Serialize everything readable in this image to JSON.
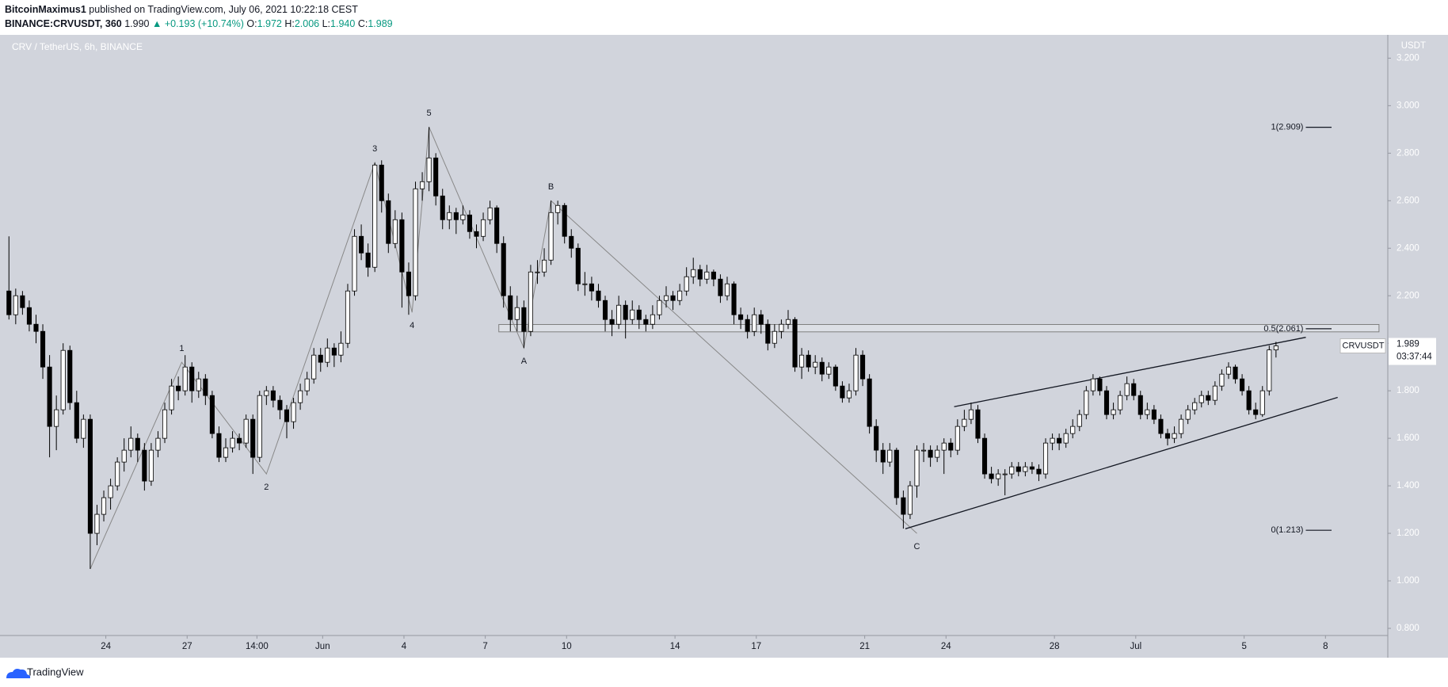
{
  "header": {
    "author": "BitcoinMaximus1",
    "published": "published on TradingView.com, July 06, 2021 10:22:18 CEST",
    "symbol": "BINANCE:CRVUSDT, 360",
    "last": "1.990",
    "change": "▲ +0.193 (+10.74%)",
    "ohlc": [
      {
        "label": "O:",
        "value": "1.972"
      },
      {
        "label": "H:",
        "value": "2.006"
      },
      {
        "label": "L:",
        "value": "1.940"
      },
      {
        "label": "C:",
        "value": "1.989"
      }
    ]
  },
  "footer": {
    "brand": "TradingView"
  },
  "chart_data": {
    "type": "candlestick",
    "title": "CRV / TetherUS, 6h, BINANCE",
    "currency": "USDT",
    "background": "#d1d4dc",
    "up_color": "#ffffff",
    "down_color": "#000000",
    "grid": false,
    "xlim": [
      -0.5,
      203.5
    ],
    "ylim": [
      0.77,
      3.298
    ],
    "yticks": [
      {
        "value": 0.8,
        "label": "0.800"
      },
      {
        "value": 1.0,
        "label": "1.000"
      },
      {
        "value": 1.2,
        "label": "1.200"
      },
      {
        "value": 1.4,
        "label": "1.400"
      },
      {
        "value": 1.6,
        "label": "1.600"
      },
      {
        "value": 1.8,
        "label": "1.800"
      },
      {
        "value": 2.0,
        "label": "2.000"
      },
      {
        "value": 2.2,
        "label": "2.200"
      },
      {
        "value": 2.4,
        "label": "2.400"
      },
      {
        "value": 2.6,
        "label": "2.600"
      },
      {
        "value": 2.8,
        "label": "2.800"
      },
      {
        "value": 3.0,
        "label": "3.000"
      },
      {
        "value": 3.2,
        "label": "3.200"
      }
    ],
    "xticks": [
      {
        "value": 14.3,
        "label": "24"
      },
      {
        "value": 26.3,
        "label": "27"
      },
      {
        "value": 36.6,
        "label": "14:00"
      },
      {
        "value": 46.3,
        "label": "Jun"
      },
      {
        "value": 58.3,
        "label": "4"
      },
      {
        "value": 70.3,
        "label": "7"
      },
      {
        "value": 82.3,
        "label": "10"
      },
      {
        "value": 98.3,
        "label": "14"
      },
      {
        "value": 110.3,
        "label": "17"
      },
      {
        "value": 126.3,
        "label": "21"
      },
      {
        "value": 138.3,
        "label": "24"
      },
      {
        "value": 154.3,
        "label": "28"
      },
      {
        "value": 166.3,
        "label": "Jul"
      },
      {
        "value": 182.3,
        "label": "5"
      },
      {
        "value": 194.3,
        "label": "8"
      }
    ],
    "ohlc": [
      [
        2.22,
        2.45,
        2.1,
        2.12
      ],
      [
        2.12,
        2.23,
        2.08,
        2.2
      ],
      [
        2.2,
        2.22,
        2.12,
        2.15
      ],
      [
        2.15,
        2.18,
        2.05,
        2.08
      ],
      [
        2.08,
        2.12,
        2.0,
        2.05
      ],
      [
        2.05,
        2.08,
        1.85,
        1.9
      ],
      [
        1.9,
        1.95,
        1.52,
        1.65
      ],
      [
        1.65,
        1.78,
        1.55,
        1.72
      ],
      [
        1.72,
        2.0,
        1.7,
        1.97
      ],
      [
        1.97,
        1.99,
        1.72,
        1.75
      ],
      [
        1.75,
        1.8,
        1.58,
        1.6
      ],
      [
        1.6,
        1.7,
        1.56,
        1.68
      ],
      [
        1.68,
        1.7,
        1.05,
        1.2
      ],
      [
        1.2,
        1.32,
        1.15,
        1.28
      ],
      [
        1.28,
        1.38,
        1.25,
        1.35
      ],
      [
        1.35,
        1.43,
        1.3,
        1.4
      ],
      [
        1.4,
        1.52,
        1.38,
        1.5
      ],
      [
        1.5,
        1.6,
        1.46,
        1.55
      ],
      [
        1.55,
        1.65,
        1.52,
        1.6
      ],
      [
        1.6,
        1.62,
        1.5,
        1.55
      ],
      [
        1.55,
        1.58,
        1.38,
        1.42
      ],
      [
        1.42,
        1.58,
        1.4,
        1.55
      ],
      [
        1.55,
        1.63,
        1.52,
        1.6
      ],
      [
        1.6,
        1.75,
        1.58,
        1.72
      ],
      [
        1.72,
        1.85,
        1.7,
        1.82
      ],
      [
        1.82,
        1.86,
        1.76,
        1.8
      ],
      [
        1.8,
        1.95,
        1.78,
        1.9
      ],
      [
        1.9,
        1.92,
        1.75,
        1.8
      ],
      [
        1.8,
        1.88,
        1.77,
        1.85
      ],
      [
        1.85,
        1.87,
        1.74,
        1.78
      ],
      [
        1.78,
        1.8,
        1.6,
        1.62
      ],
      [
        1.62,
        1.65,
        1.5,
        1.52
      ],
      [
        1.52,
        1.6,
        1.5,
        1.56
      ],
      [
        1.56,
        1.63,
        1.54,
        1.6
      ],
      [
        1.6,
        1.62,
        1.55,
        1.58
      ],
      [
        1.58,
        1.7,
        1.56,
        1.68
      ],
      [
        1.68,
        1.7,
        1.45,
        1.52
      ],
      [
        1.52,
        1.8,
        1.5,
        1.78
      ],
      [
        1.78,
        1.82,
        1.74,
        1.8
      ],
      [
        1.8,
        1.82,
        1.73,
        1.76
      ],
      [
        1.76,
        1.78,
        1.68,
        1.72
      ],
      [
        1.72,
        1.74,
        1.6,
        1.67
      ],
      [
        1.67,
        1.77,
        1.64,
        1.75
      ],
      [
        1.75,
        1.83,
        1.72,
        1.8
      ],
      [
        1.8,
        1.88,
        1.78,
        1.85
      ],
      [
        1.85,
        1.98,
        1.83,
        1.95
      ],
      [
        1.95,
        1.98,
        1.88,
        1.92
      ],
      [
        1.92,
        2.02,
        1.9,
        1.98
      ],
      [
        1.98,
        2.0,
        1.9,
        1.95
      ],
      [
        1.95,
        2.05,
        1.92,
        2.0
      ],
      [
        2.0,
        2.25,
        1.98,
        2.22
      ],
      [
        2.22,
        2.48,
        2.2,
        2.45
      ],
      [
        2.45,
        2.5,
        2.35,
        2.38
      ],
      [
        2.38,
        2.42,
        2.28,
        2.32
      ],
      [
        2.32,
        2.76,
        2.3,
        2.75
      ],
      [
        2.75,
        2.77,
        2.55,
        2.6
      ],
      [
        2.6,
        2.63,
        2.38,
        2.42
      ],
      [
        2.42,
        2.56,
        2.4,
        2.52
      ],
      [
        2.52,
        2.55,
        2.15,
        2.3
      ],
      [
        2.3,
        2.34,
        2.12,
        2.2
      ],
      [
        2.2,
        2.68,
        2.18,
        2.65
      ],
      [
        2.65,
        2.72,
        2.6,
        2.68
      ],
      [
        2.68,
        2.91,
        2.64,
        2.78
      ],
      [
        2.78,
        2.8,
        2.58,
        2.62
      ],
      [
        2.62,
        2.65,
        2.48,
        2.52
      ],
      [
        2.52,
        2.58,
        2.48,
        2.55
      ],
      [
        2.55,
        2.57,
        2.46,
        2.52
      ],
      [
        2.52,
        2.58,
        2.5,
        2.54
      ],
      [
        2.54,
        2.56,
        2.44,
        2.47
      ],
      [
        2.47,
        2.5,
        2.4,
        2.45
      ],
      [
        2.45,
        2.55,
        2.43,
        2.52
      ],
      [
        2.52,
        2.6,
        2.5,
        2.57
      ],
      [
        2.57,
        2.58,
        2.38,
        2.42
      ],
      [
        2.42,
        2.45,
        2.15,
        2.2
      ],
      [
        2.2,
        2.24,
        2.05,
        2.1
      ],
      [
        2.1,
        2.2,
        2.05,
        2.15
      ],
      [
        2.15,
        2.18,
        1.98,
        2.05
      ],
      [
        2.05,
        2.33,
        2.03,
        2.3
      ],
      [
        2.3,
        2.35,
        2.25,
        2.3
      ],
      [
        2.3,
        2.4,
        2.28,
        2.35
      ],
      [
        2.35,
        2.6,
        2.33,
        2.55
      ],
      [
        2.55,
        2.6,
        2.5,
        2.58
      ],
      [
        2.58,
        2.59,
        2.42,
        2.45
      ],
      [
        2.45,
        2.48,
        2.36,
        2.4
      ],
      [
        2.4,
        2.42,
        2.22,
        2.25
      ],
      [
        2.25,
        2.3,
        2.2,
        2.25
      ],
      [
        2.25,
        2.28,
        2.18,
        2.22
      ],
      [
        2.22,
        2.25,
        2.15,
        2.18
      ],
      [
        2.18,
        2.2,
        2.05,
        2.1
      ],
      [
        2.1,
        2.14,
        2.03,
        2.08
      ],
      [
        2.08,
        2.2,
        2.06,
        2.16
      ],
      [
        2.16,
        2.18,
        2.02,
        2.1
      ],
      [
        2.1,
        2.18,
        2.08,
        2.14
      ],
      [
        2.14,
        2.16,
        2.06,
        2.1
      ],
      [
        2.1,
        2.12,
        2.05,
        2.08
      ],
      [
        2.08,
        2.16,
        2.06,
        2.12
      ],
      [
        2.12,
        2.2,
        2.1,
        2.18
      ],
      [
        2.18,
        2.24,
        2.15,
        2.2
      ],
      [
        2.2,
        2.22,
        2.14,
        2.18
      ],
      [
        2.18,
        2.25,
        2.16,
        2.22
      ],
      [
        2.22,
        2.32,
        2.2,
        2.28
      ],
      [
        2.28,
        2.36,
        2.25,
        2.31
      ],
      [
        2.31,
        2.33,
        2.24,
        2.27
      ],
      [
        2.27,
        2.33,
        2.25,
        2.3
      ],
      [
        2.3,
        2.31,
        2.24,
        2.27
      ],
      [
        2.27,
        2.29,
        2.17,
        2.2
      ],
      [
        2.2,
        2.28,
        2.18,
        2.25
      ],
      [
        2.25,
        2.26,
        2.08,
        2.12
      ],
      [
        2.12,
        2.15,
        2.06,
        2.1
      ],
      [
        2.1,
        2.12,
        2.02,
        2.05
      ],
      [
        2.05,
        2.15,
        2.03,
        2.12
      ],
      [
        2.12,
        2.14,
        2.04,
        2.08
      ],
      [
        2.08,
        2.1,
        1.97,
        2.0
      ],
      [
        2.0,
        2.08,
        1.98,
        2.05
      ],
      [
        2.05,
        2.1,
        2.02,
        2.08
      ],
      [
        2.08,
        2.14,
        2.06,
        2.1
      ],
      [
        2.1,
        2.11,
        1.88,
        1.9
      ],
      [
        1.9,
        1.98,
        1.85,
        1.95
      ],
      [
        1.95,
        1.97,
        1.88,
        1.9
      ],
      [
        1.9,
        1.95,
        1.87,
        1.92
      ],
      [
        1.92,
        1.94,
        1.84,
        1.87
      ],
      [
        1.87,
        1.92,
        1.85,
        1.9
      ],
      [
        1.9,
        1.91,
        1.8,
        1.82
      ],
      [
        1.82,
        1.84,
        1.75,
        1.77
      ],
      [
        1.77,
        1.83,
        1.75,
        1.8
      ],
      [
        1.8,
        1.98,
        1.78,
        1.95
      ],
      [
        1.95,
        1.97,
        1.82,
        1.85
      ],
      [
        1.85,
        1.87,
        1.62,
        1.65
      ],
      [
        1.65,
        1.68,
        1.5,
        1.55
      ],
      [
        1.55,
        1.58,
        1.45,
        1.5
      ],
      [
        1.5,
        1.58,
        1.48,
        1.55
      ],
      [
        1.55,
        1.56,
        1.32,
        1.35
      ],
      [
        1.35,
        1.38,
        1.22,
        1.28
      ],
      [
        1.28,
        1.42,
        1.26,
        1.4
      ],
      [
        1.4,
        1.57,
        1.35,
        1.55
      ],
      [
        1.55,
        1.58,
        1.5,
        1.55
      ],
      [
        1.55,
        1.57,
        1.48,
        1.52
      ],
      [
        1.52,
        1.57,
        1.5,
        1.55
      ],
      [
        1.55,
        1.6,
        1.45,
        1.58
      ],
      [
        1.58,
        1.6,
        1.52,
        1.55
      ],
      [
        1.55,
        1.68,
        1.53,
        1.65
      ],
      [
        1.65,
        1.72,
        1.63,
        1.68
      ],
      [
        1.68,
        1.75,
        1.66,
        1.72
      ],
      [
        1.72,
        1.74,
        1.58,
        1.6
      ],
      [
        1.6,
        1.62,
        1.43,
        1.45
      ],
      [
        1.45,
        1.48,
        1.41,
        1.43
      ],
      [
        1.43,
        1.47,
        1.4,
        1.45
      ],
      [
        1.45,
        1.47,
        1.36,
        1.45
      ],
      [
        1.45,
        1.5,
        1.43,
        1.48
      ],
      [
        1.48,
        1.5,
        1.44,
        1.46
      ],
      [
        1.46,
        1.5,
        1.44,
        1.48
      ],
      [
        1.48,
        1.5,
        1.45,
        1.47
      ],
      [
        1.47,
        1.49,
        1.42,
        1.45
      ],
      [
        1.45,
        1.6,
        1.43,
        1.58
      ],
      [
        1.58,
        1.62,
        1.55,
        1.6
      ],
      [
        1.6,
        1.62,
        1.55,
        1.58
      ],
      [
        1.58,
        1.64,
        1.56,
        1.62
      ],
      [
        1.62,
        1.68,
        1.6,
        1.65
      ],
      [
        1.65,
        1.72,
        1.63,
        1.7
      ],
      [
        1.7,
        1.82,
        1.68,
        1.8
      ],
      [
        1.8,
        1.87,
        1.78,
        1.85
      ],
      [
        1.85,
        1.86,
        1.78,
        1.8
      ],
      [
        1.8,
        1.82,
        1.68,
        1.7
      ],
      [
        1.7,
        1.75,
        1.68,
        1.72
      ],
      [
        1.72,
        1.8,
        1.7,
        1.78
      ],
      [
        1.78,
        1.86,
        1.76,
        1.83
      ],
      [
        1.83,
        1.85,
        1.76,
        1.78
      ],
      [
        1.78,
        1.8,
        1.68,
        1.7
      ],
      [
        1.7,
        1.75,
        1.68,
        1.72
      ],
      [
        1.72,
        1.74,
        1.66,
        1.68
      ],
      [
        1.68,
        1.7,
        1.6,
        1.62
      ],
      [
        1.62,
        1.64,
        1.57,
        1.6
      ],
      [
        1.6,
        1.65,
        1.58,
        1.62
      ],
      [
        1.62,
        1.7,
        1.6,
        1.68
      ],
      [
        1.68,
        1.74,
        1.66,
        1.72
      ],
      [
        1.72,
        1.77,
        1.7,
        1.75
      ],
      [
        1.75,
        1.8,
        1.73,
        1.78
      ],
      [
        1.78,
        1.8,
        1.74,
        1.76
      ],
      [
        1.76,
        1.84,
        1.74,
        1.82
      ],
      [
        1.82,
        1.89,
        1.8,
        1.87
      ],
      [
        1.87,
        1.92,
        1.85,
        1.9
      ],
      [
        1.9,
        1.91,
        1.83,
        1.85
      ],
      [
        1.85,
        1.87,
        1.78,
        1.8
      ],
      [
        1.8,
        1.82,
        1.7,
        1.72
      ],
      [
        1.72,
        1.75,
        1.68,
        1.7
      ],
      [
        1.7,
        1.82,
        1.69,
        1.8
      ],
      [
        1.8,
        1.99,
        1.78,
        1.972
      ],
      [
        1.972,
        2.006,
        1.94,
        1.989
      ]
    ],
    "waves": [
      {
        "x": 12,
        "y": 1.05
      },
      {
        "label": "1",
        "x": 25.5,
        "y": 1.92
      },
      {
        "label": "2",
        "x": 38,
        "y": 1.45
      },
      {
        "label": "3",
        "x": 54,
        "y": 2.76
      },
      {
        "label": "4",
        "x": 59.5,
        "y": 2.13
      },
      {
        "label": "5",
        "x": 62,
        "y": 2.91
      },
      {
        "label": "A",
        "x": 76,
        "y": 1.98
      },
      {
        "label": "B",
        "x": 80,
        "y": 2.6
      },
      {
        "label": "C",
        "x": 134,
        "y": 1.2
      }
    ],
    "trendlines": [
      {
        "x": [
          139.5,
          191.4
        ],
        "y": [
          1.733,
          2.025
        ]
      },
      {
        "x": [
          132.3,
          196.1
        ],
        "y": [
          1.219,
          1.772
        ]
      }
    ],
    "zone": {
      "x": [
        72.3,
        202.2
      ],
      "y": [
        2.048,
        2.079
      ]
    },
    "fib": {
      "x": [
        191.4,
        195.2
      ],
      "levels": [
        {
          "value": 2.909,
          "label": "1(2.909)"
        },
        {
          "value": 2.061,
          "label": "0.5(2.061)"
        },
        {
          "value": 1.213,
          "label": "0(1.213)"
        }
      ]
    },
    "price_tag": {
      "symbol": "CRVUSDT",
      "price": {
        "value": 1.989,
        "label": "1.989"
      },
      "countdown": "03:37:44"
    }
  }
}
